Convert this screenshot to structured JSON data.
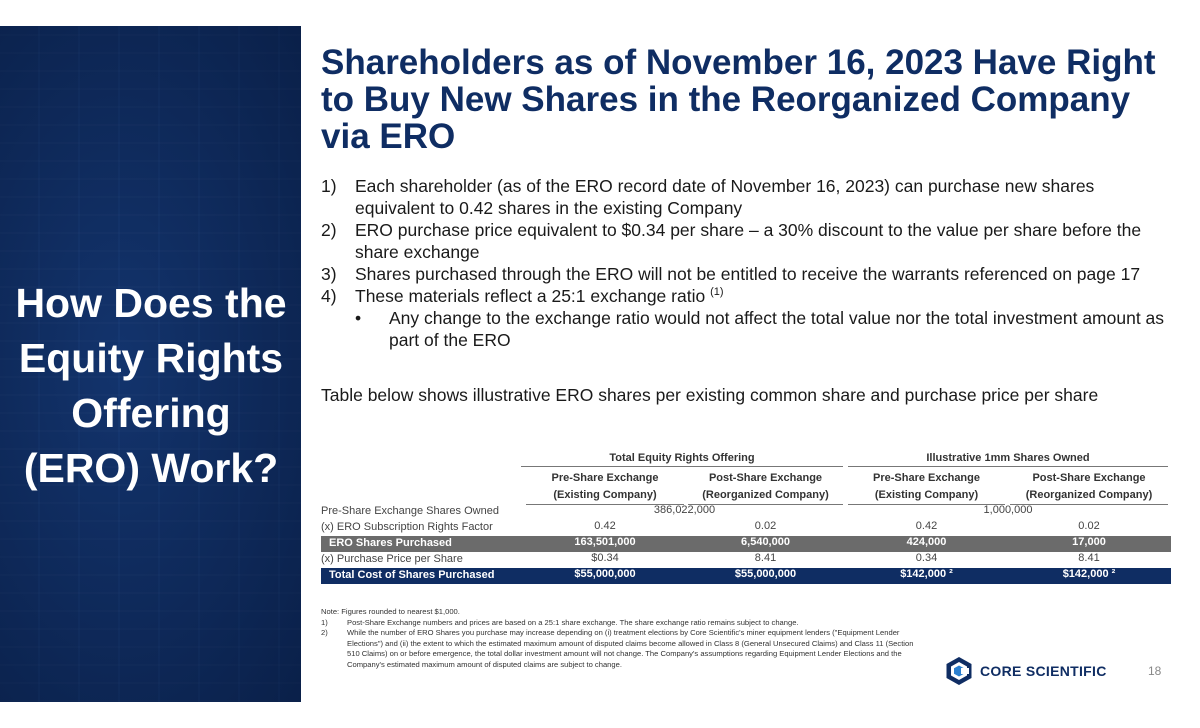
{
  "sidebar": {
    "heading": "How Does the Equity Rights Offering (ERO) Work?"
  },
  "main": {
    "title": "Shareholders as of November 16, 2023 Have Right to Buy New Shares in the Reorganized Company via ERO",
    "bullets": [
      {
        "num": "1)",
        "text": "Each shareholder (as of the ERO record date of November 16, 2023) can purchase new shares equivalent to 0.42 shares in the existing Company"
      },
      {
        "num": "2)",
        "text": "ERO purchase price equivalent to $0.34 per share – a 30% discount to the value per share before the share exchange"
      },
      {
        "num": "3)",
        "text": "Shares purchased through the ERO will not be entitled to receive the warrants referenced on page 17"
      },
      {
        "num": "4)",
        "text": "These materials reflect a 25:1 exchange ratio",
        "sup": "(1)"
      }
    ],
    "sub_bullet": {
      "marker": "•",
      "text": "Any change to the exchange ratio would not affect the total value nor the total investment amount as part of the ERO"
    },
    "table_intro": "Table below shows illustrative ERO shares per existing common share and purchase price per share"
  },
  "table": {
    "groups": [
      "Total Equity Rights Offering",
      "Illustrative 1mm Shares Owned"
    ],
    "columns": [
      {
        "line1": "Pre-Share Exchange",
        "line2": "(Existing Company)"
      },
      {
        "line1": "Post-Share Exchange",
        "line2": "(Reorganized Company)"
      },
      {
        "line1": "Pre-Share Exchange",
        "line2": "(Existing Company)"
      },
      {
        "line1": "Post-Share Exchange",
        "line2": "(Reorganized Company)"
      }
    ],
    "rows": [
      {
        "label": "Pre-Share Exchange Shares Owned",
        "style": "plain",
        "merged": [
          "386,022,000",
          "1,000,000"
        ]
      },
      {
        "label": "(x) ERO Subscription Rights Factor",
        "style": "plain",
        "values": [
          "0.42",
          "0.02",
          "0.42",
          "0.02"
        ]
      },
      {
        "label": "ERO Shares Purchased",
        "style": "gray",
        "values": [
          "163,501,000",
          "6,540,000",
          "424,000",
          "17,000"
        ]
      },
      {
        "label": "(x) Purchase Price per Share",
        "style": "plain",
        "values": [
          "$0.34",
          "8.41",
          "0.34",
          "8.41"
        ]
      },
      {
        "label": "Total Cost of Shares Purchased",
        "style": "navy",
        "values": [
          "$55,000,000",
          "$55,000,000",
          "$142,000 ²",
          "$142,000 ²"
        ]
      }
    ]
  },
  "notes": {
    "intro": "Note: Figures rounded to nearest $1,000.",
    "items": [
      {
        "key": "1)",
        "text": "Post-Share Exchange numbers and prices are based on a 25:1 share exchange. The share exchange ratio remains subject to change."
      },
      {
        "key": "2)",
        "text": "While the number of ERO Shares you purchase may increase depending on (i) treatment elections by Core Scientific's miner equipment lenders (\"Equipment Lender Elections\") and (ii) the extent to which the estimated maximum amount of disputed claims become allowed in Class 8 (General Unsecured Claims) and Class 11 (Section 510 Claims) on or before emergence, the total dollar investment amount will not change. The Company's assumptions regarding Equipment Lender Elections and the Company's estimated maximum amount of disputed claims are subject to change."
      }
    ]
  },
  "footer": {
    "logo_text": "CORE SCIENTIFIC",
    "page_number": "18"
  },
  "colors": {
    "navy": "#0f2d63",
    "gray_row": "#6b6b6b"
  }
}
